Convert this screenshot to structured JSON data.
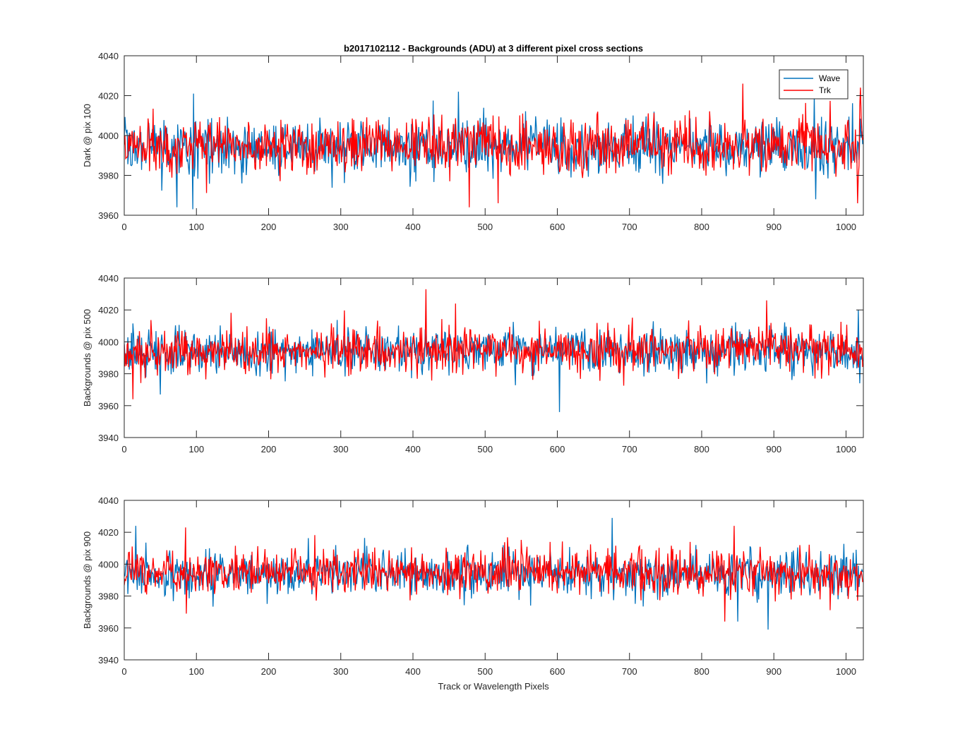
{
  "figure_title": "b2017102112 - Backgrounds (ADU) at 3 different pixel cross sections",
  "xlabel": "Track or Wavelength Pixels",
  "colors": {
    "Wave": "#0072BD",
    "Trk": "#FF0000",
    "axis": "#262626"
  },
  "chart_data": [
    {
      "type": "line",
      "title": "b2017102112 - Backgrounds (ADU) at 3 different pixel cross sections",
      "ylabel": "Dark @ pix 100",
      "xlabel": "",
      "xlim": [
        0,
        1024
      ],
      "ylim": [
        3960,
        4040
      ],
      "xticks": [
        0,
        100,
        200,
        300,
        400,
        500,
        600,
        700,
        800,
        900,
        1000
      ],
      "yticks": [
        3960,
        3980,
        4000,
        4020,
        4040
      ],
      "legend": {
        "position": "top-right",
        "entries": [
          "Wave",
          "Trk"
        ]
      },
      "series": [
        {
          "name": "Wave",
          "color": "#0072BD",
          "n_points": 1024,
          "mean": 3994,
          "stdev": 7,
          "min": 3963,
          "max": 4022,
          "x_range": [
            0,
            1023
          ],
          "notable_points": [
            [
              73,
              3964
            ],
            [
              95,
              3963
            ],
            [
              96,
              4021
            ],
            [
              463,
              4022
            ],
            [
              956,
              4020
            ],
            [
              958,
              3968
            ]
          ]
        },
        {
          "name": "Trk",
          "color": "#FF0000",
          "n_points": 1024,
          "mean": 3995,
          "stdev": 7,
          "min": 3964,
          "max": 4026,
          "x_range": [
            0,
            1023
          ],
          "notable_points": [
            [
              478,
              3964
            ],
            [
              518,
              3966
            ],
            [
              857,
              4026
            ],
            [
              1020,
              4024
            ],
            [
              1016,
              3966
            ]
          ]
        }
      ]
    },
    {
      "type": "line",
      "ylabel": "Backgrounds @ pix 500",
      "xlabel": "",
      "xlim": [
        0,
        1024
      ],
      "ylim": [
        3940,
        4040
      ],
      "xticks": [
        0,
        100,
        200,
        300,
        400,
        500,
        600,
        700,
        800,
        900,
        1000
      ],
      "yticks": [
        3940,
        3960,
        3980,
        4000,
        4020,
        4040
      ],
      "series": [
        {
          "name": "Wave",
          "color": "#0072BD",
          "n_points": 1024,
          "mean": 3994,
          "stdev": 7,
          "min": 3956,
          "max": 4021,
          "x_range": [
            0,
            1023
          ],
          "notable_points": [
            [
              50,
              3967
            ],
            [
              603,
              3956
            ],
            [
              1017,
              4020
            ],
            [
              1019,
              3974
            ]
          ]
        },
        {
          "name": "Trk",
          "color": "#FF0000",
          "n_points": 1024,
          "mean": 3995,
          "stdev": 7,
          "min": 3964,
          "max": 4033,
          "x_range": [
            0,
            1023
          ],
          "notable_points": [
            [
              12,
              3964
            ],
            [
              418,
              4033
            ],
            [
              890,
              4026
            ],
            [
              459,
              4024
            ]
          ]
        }
      ]
    },
    {
      "type": "line",
      "ylabel": "Backgrounds @ pix 900",
      "xlabel": "Track or Wavelength Pixels",
      "xlim": [
        0,
        1024
      ],
      "ylim": [
        3940,
        4040
      ],
      "xticks": [
        0,
        100,
        200,
        300,
        400,
        500,
        600,
        700,
        800,
        900,
        1000
      ],
      "yticks": [
        3940,
        3960,
        3980,
        4000,
        4020,
        4040
      ],
      "series": [
        {
          "name": "Wave",
          "color": "#0072BD",
          "n_points": 1024,
          "mean": 3994,
          "stdev": 7,
          "min": 3959,
          "max": 4029,
          "x_range": [
            0,
            1023
          ],
          "notable_points": [
            [
              16,
              4024
            ],
            [
              676,
              4029
            ],
            [
              892,
              3959
            ],
            [
              850,
              3964
            ]
          ]
        },
        {
          "name": "Trk",
          "color": "#FF0000",
          "n_points": 1024,
          "mean": 3995,
          "stdev": 7,
          "min": 3964,
          "max": 4024,
          "x_range": [
            0,
            1023
          ],
          "notable_points": [
            [
              85,
              4023
            ],
            [
              832,
              3964
            ],
            [
              845,
              4024
            ],
            [
              86,
              3969
            ]
          ]
        }
      ]
    }
  ]
}
